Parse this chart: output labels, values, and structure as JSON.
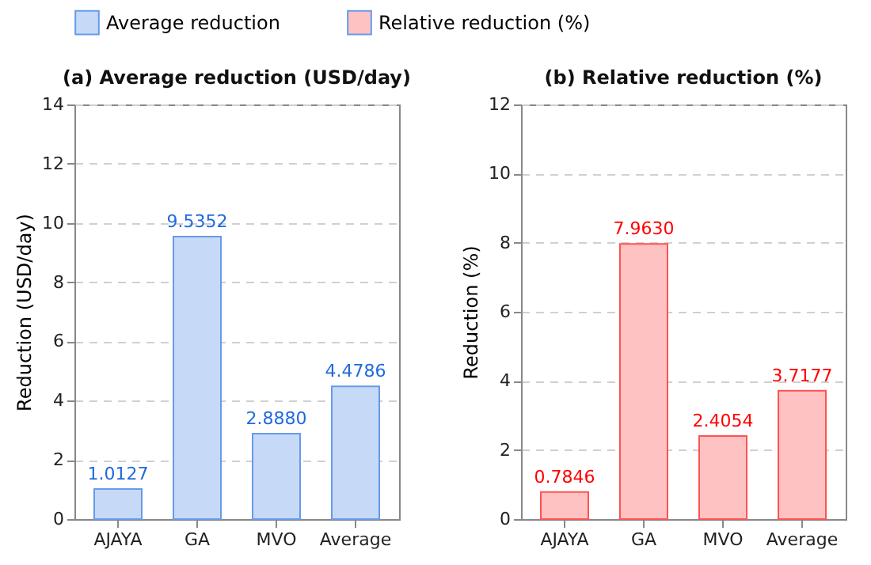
{
  "chart_data": [
    {
      "type": "bar",
      "title": "(a) Average reduction (USD/day)",
      "ylabel": "Reduction (USD/day)",
      "categories": [
        "AJAYA",
        "GA",
        "MVO",
        "Average"
      ],
      "series": [
        {
          "name": "Average reduction",
          "color": "#c6d9f7",
          "values": [
            1.0127,
            9.5352,
            2.888,
            4.4786
          ],
          "value_labels": [
            "1.0127",
            "9.5352",
            "2.8880",
            "4.4786"
          ]
        }
      ],
      "ylim": [
        0,
        14
      ],
      "yticks": [
        0,
        2,
        4,
        6,
        8,
        10,
        12,
        14
      ],
      "grid": "y",
      "legend": "top"
    },
    {
      "type": "bar",
      "title": "(b) Relative reduction (%)",
      "ylabel": "Reduction (%)",
      "categories": [
        "AJAYA",
        "GA",
        "MVO",
        "Average"
      ],
      "series": [
        {
          "name": "Relative reduction (%)",
          "color": "#ffc2c2",
          "values": [
            0.7846,
            7.963,
            2.4054,
            3.7177
          ],
          "value_labels": [
            "0.7846",
            "7.9630",
            "2.4054",
            "3.7177"
          ]
        }
      ],
      "ylim": [
        0,
        12
      ],
      "yticks": [
        0,
        2,
        4,
        6,
        8,
        10,
        12
      ],
      "grid": "y",
      "legend": "top"
    }
  ]
}
